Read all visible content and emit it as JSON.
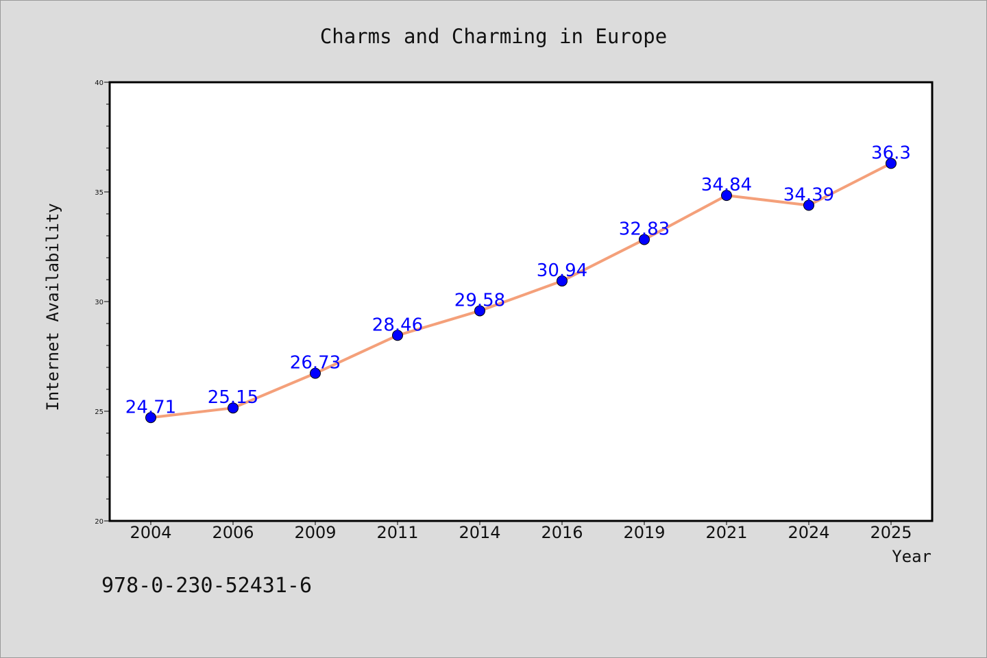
{
  "chart_data": {
    "type": "line",
    "title": "Charms and Charming in Europe",
    "xlabel": "Year",
    "ylabel": "Internet Availability",
    "categories": [
      "2004",
      "2006",
      "2009",
      "2011",
      "2014",
      "2016",
      "2019",
      "2021",
      "2024",
      "2025"
    ],
    "series": [
      {
        "values": [
          24.71,
          25.15,
          26.73,
          28.46,
          29.58,
          30.94,
          32.83,
          34.84,
          34.39,
          36.3
        ],
        "data_labels": [
          "24.71",
          "25.15",
          "26.73",
          "28.46",
          "29.58",
          "30.94",
          "32.83",
          "34.84",
          "34.39",
          "36.3"
        ],
        "line_color": "#f4a07a",
        "marker_color": "#0000ff"
      }
    ],
    "ylim": [
      20,
      40
    ],
    "yticks": [
      20,
      25,
      30,
      35,
      40
    ],
    "ytick_labels": [
      "20",
      "25",
      "30",
      "35",
      "40"
    ],
    "grid": false,
    "legend": "none",
    "background": "#dcdcdc",
    "plot_background": "#ffffff"
  },
  "annotation": "978-0-230-52431-6"
}
